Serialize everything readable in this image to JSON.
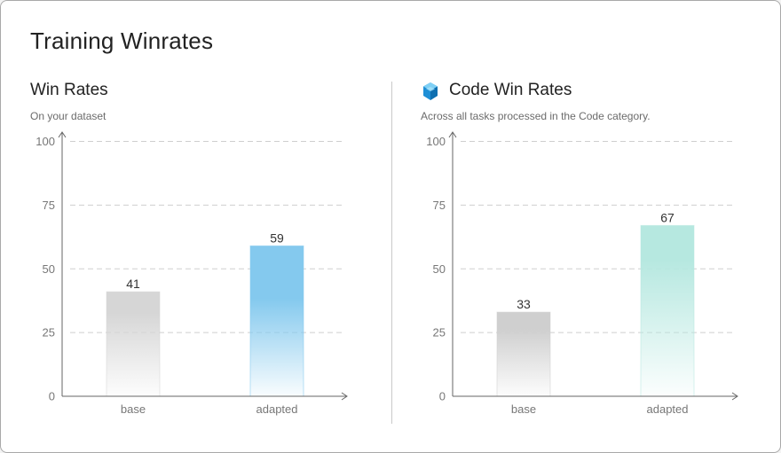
{
  "page": {
    "title": "Training Winrates"
  },
  "panels": [
    {
      "title": "Win Rates",
      "subtitle": "On your dataset",
      "icon": null
    },
    {
      "title": "Code Win Rates",
      "subtitle": "Across all tasks processed in the Code category.",
      "icon": "code-category-icon"
    }
  ],
  "chart_data": [
    {
      "type": "bar",
      "categories": [
        "base",
        "adapted"
      ],
      "values": [
        41,
        59
      ],
      "ylim": [
        0,
        100
      ],
      "yticks": [
        0,
        25,
        50,
        75,
        100
      ],
      "grid": true,
      "colors": {
        "base": "#d6d6d6",
        "adapted": "#84c9ee"
      }
    },
    {
      "type": "bar",
      "categories": [
        "base",
        "adapted"
      ],
      "values": [
        33,
        67
      ],
      "ylim": [
        0,
        100
      ],
      "yticks": [
        0,
        25,
        50,
        75,
        100
      ],
      "grid": true,
      "colors": {
        "base": "#cfcfcf",
        "adapted": "#b6e8e0"
      }
    }
  ]
}
